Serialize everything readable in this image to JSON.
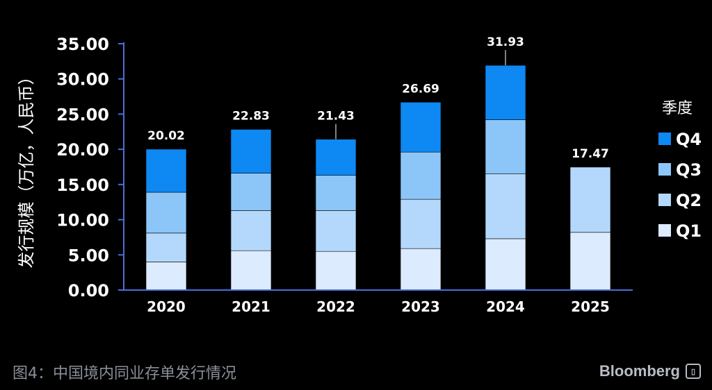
{
  "caption": "图4：中国境内同业存单发行情况",
  "brand": "Bloomberg",
  "brand_icon": "bloomberg-terminal-icon",
  "colors": {
    "background": "#000000",
    "axis": "#4a6fd8",
    "Q1": "#dcebfd",
    "Q2": "#b4d8fb",
    "Q3": "#8cc6f8",
    "Q4": "#0e88f2"
  },
  "chart_data": {
    "type": "bar",
    "stacked": true,
    "ylabel": "发行规模（万亿，人民币）",
    "categories": [
      "2020",
      "2021",
      "2022",
      "2023",
      "2024",
      "2025"
    ],
    "ylim": [
      0,
      35
    ],
    "yticks": [
      "0.00",
      "5.00",
      "10.00",
      "15.00",
      "20.00",
      "25.00",
      "30.00",
      "35.00"
    ],
    "legend_title": "季度",
    "legend_position": "right",
    "series": [
      {
        "name": "Q1",
        "values": [
          4.0,
          5.6,
          5.5,
          5.9,
          7.3,
          8.2
        ]
      },
      {
        "name": "Q2",
        "values": [
          4.1,
          5.7,
          5.8,
          7.0,
          9.2,
          9.27
        ]
      },
      {
        "name": "Q3",
        "values": [
          5.8,
          5.3,
          5.0,
          6.7,
          7.7,
          0
        ]
      },
      {
        "name": "Q4",
        "values": [
          6.12,
          6.23,
          5.13,
          7.09,
          7.73,
          0
        ]
      }
    ],
    "totals": [
      "20.02",
      "22.83",
      "21.43",
      "26.69",
      "31.93",
      "17.47"
    ]
  }
}
